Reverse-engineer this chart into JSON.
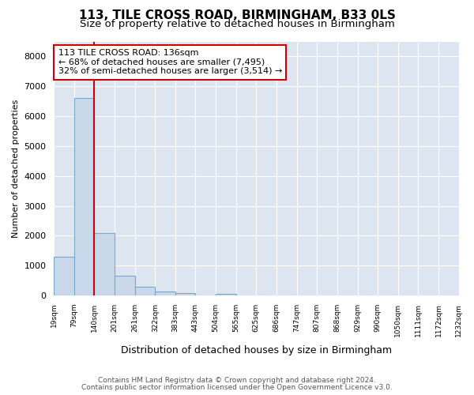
{
  "title": "113, TILE CROSS ROAD, BIRMINGHAM, B33 0LS",
  "subtitle": "Size of property relative to detached houses in Birmingham",
  "xlabel": "Distribution of detached houses by size in Birmingham",
  "ylabel": "Number of detached properties",
  "bar_values": [
    1300,
    6600,
    2080,
    650,
    300,
    140,
    80,
    0,
    60,
    0,
    0,
    0,
    0,
    0,
    0,
    0,
    0,
    0,
    0,
    0
  ],
  "bin_edges": [
    19,
    79,
    140,
    201,
    261,
    322,
    383,
    443,
    504,
    565,
    625,
    686,
    747,
    807,
    868,
    929,
    990,
    1050,
    1111,
    1172,
    1232
  ],
  "tick_labels": [
    "19sqm",
    "79sqm",
    "140sqm",
    "201sqm",
    "261sqm",
    "322sqm",
    "383sqm",
    "443sqm",
    "504sqm",
    "565sqm",
    "625sqm",
    "686sqm",
    "747sqm",
    "807sqm",
    "868sqm",
    "929sqm",
    "990sqm",
    "1050sqm",
    "1111sqm",
    "1172sqm",
    "1232sqm"
  ],
  "bar_color": "#c8d8ea",
  "bar_edge_color": "#7aa8cc",
  "vline_x": 140,
  "vline_color": "#cc0000",
  "annotation_line1": "113 TILE CROSS ROAD: 136sqm",
  "annotation_line2": "← 68% of detached houses are smaller (7,495)",
  "annotation_line3": "32% of semi-detached houses are larger (3,514) →",
  "annotation_box_color": "#cc0000",
  "ylim": [
    0,
    8500
  ],
  "yticks": [
    0,
    1000,
    2000,
    3000,
    4000,
    5000,
    6000,
    7000,
    8000
  ],
  "background_color": "#dde6f0",
  "plot_bg_color": "#dde6f0",
  "fig_bg_color": "#ffffff",
  "grid_color": "#ffffff",
  "footer_line1": "Contains HM Land Registry data © Crown copyright and database right 2024.",
  "footer_line2": "Contains public sector information licensed under the Open Government Licence v3.0.",
  "title_fontsize": 11,
  "subtitle_fontsize": 9.5,
  "annotation_fontsize": 8,
  "ylabel_fontsize": 8,
  "xlabel_fontsize": 9
}
